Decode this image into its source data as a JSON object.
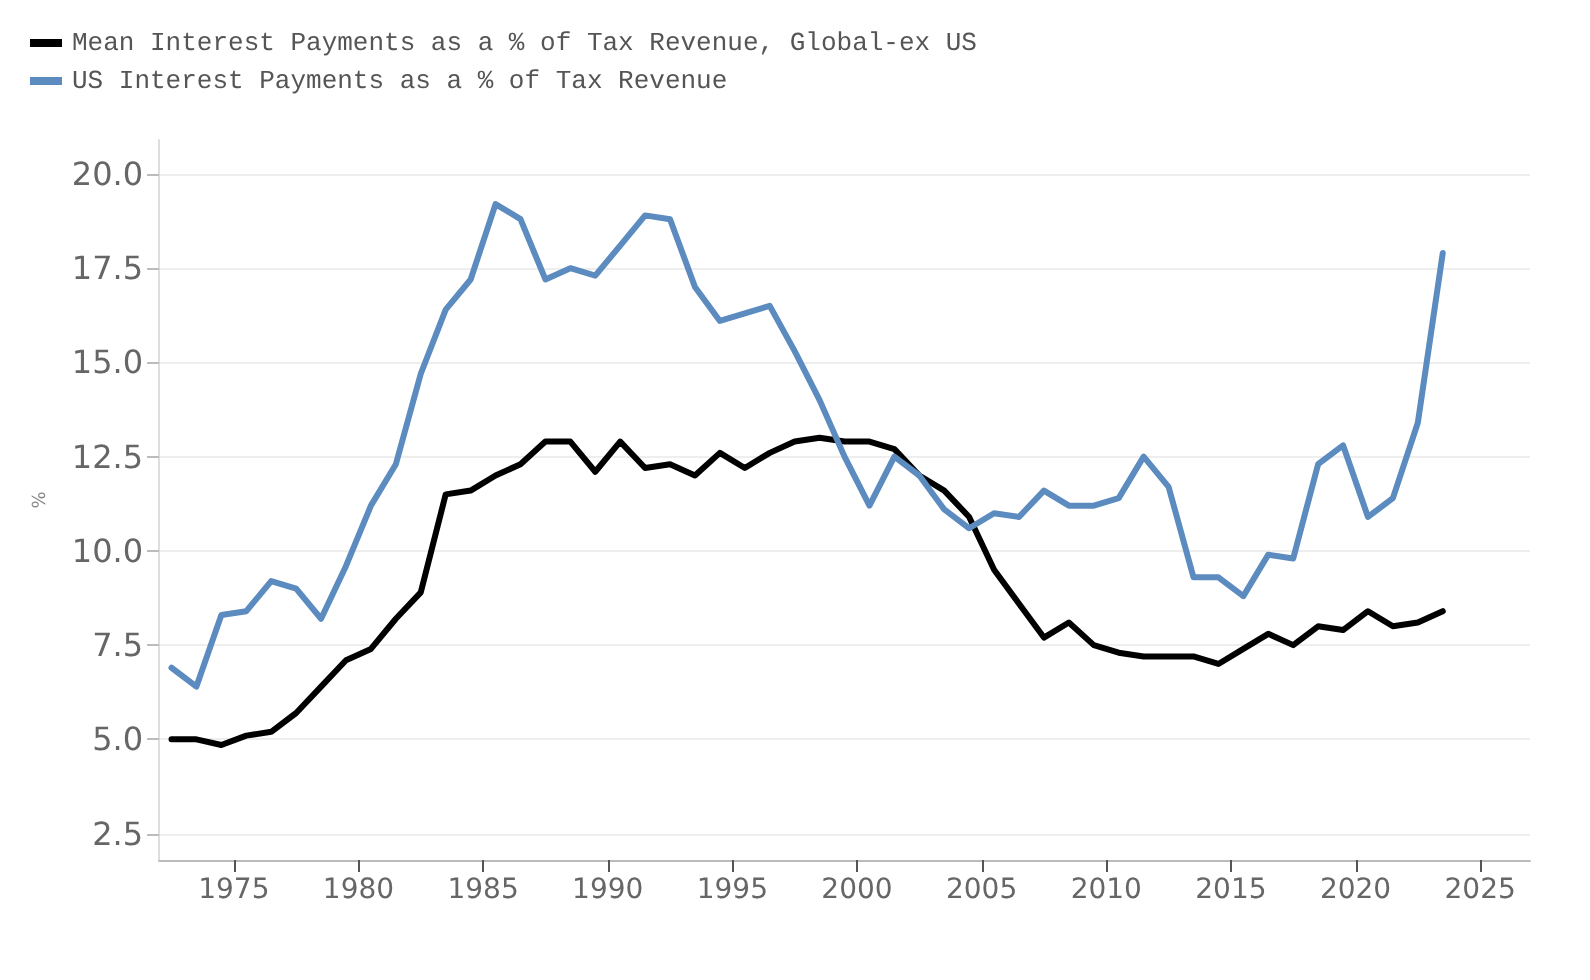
{
  "chart_data": {
    "type": "line",
    "ylabel": "%",
    "legend": "top left",
    "grid": "y",
    "marker": "none",
    "line_style": "solid",
    "xlim": [
      1972,
      2027
    ],
    "xticks": [
      1975,
      1980,
      1985,
      1990,
      1995,
      2000,
      2005,
      2010,
      2015,
      2020,
      2025
    ],
    "ylim": [
      1.8,
      20.9
    ],
    "yticks": [
      {
        "value": 2.5,
        "label": "2.5"
      },
      {
        "value": 5,
        "label": "5.0"
      },
      {
        "value": 7.5,
        "label": "7.5"
      },
      {
        "value": 10,
        "label": "10.0"
      },
      {
        "value": 12.5,
        "label": "12.5"
      },
      {
        "value": 15,
        "label": "15.0"
      },
      {
        "value": 17.5,
        "label": "17.5"
      },
      {
        "value": 20,
        "label": "20.0"
      }
    ],
    "x": [
      1972.5,
      1973.5,
      1974.5,
      1975.5,
      1976.5,
      1977.5,
      1978.5,
      1979.5,
      1980.5,
      1981.5,
      1982.5,
      1983.5,
      1984.5,
      1985.5,
      1986.5,
      1987.5,
      1988.5,
      1989.5,
      1990.5,
      1991.5,
      1992.5,
      1993.5,
      1994.5,
      1995.5,
      1996.5,
      1997.5,
      1998.5,
      1999.5,
      2000.5,
      2001.5,
      2002.5,
      2003.5,
      2004.5,
      2005.5,
      2006.5,
      2007.5,
      2008.5,
      2009.5,
      2010.5,
      2011.5,
      2012.5,
      2013.5,
      2014.5,
      2015.5,
      2016.5,
      2017.5,
      2018.5,
      2019.5,
      2020.5,
      2021.5,
      2022.5,
      2023.5
    ],
    "series": [
      {
        "name": "Mean Interest Payments as a % of Tax Revenue, Global-ex US",
        "color": "#000000",
        "values": [
          5.0,
          5.0,
          4.85,
          5.1,
          5.2,
          5.7,
          6.4,
          7.1,
          7.4,
          8.2,
          8.9,
          11.5,
          11.6,
          12.0,
          12.3,
          12.9,
          12.9,
          12.1,
          12.9,
          12.2,
          12.3,
          12.0,
          12.6,
          12.2,
          12.6,
          12.9,
          13.0,
          12.9,
          12.9,
          12.7,
          12.0,
          11.6,
          10.9,
          9.5,
          8.6,
          7.7,
          8.1,
          7.5,
          7.3,
          7.2,
          7.2,
          7.2,
          7.0,
          7.4,
          7.8,
          7.5,
          8.0,
          7.9,
          8.4,
          8.0,
          8.1,
          8.4
        ]
      },
      {
        "name": "US Interest Payments as a % of Tax Revenue",
        "color": "#5b8bbf",
        "values": [
          6.9,
          6.4,
          8.3,
          8.4,
          9.2,
          9.0,
          8.2,
          9.6,
          11.2,
          12.3,
          14.7,
          16.4,
          17.2,
          19.2,
          18.8,
          17.2,
          17.5,
          17.3,
          18.1,
          18.9,
          18.8,
          17.0,
          16.1,
          16.3,
          16.5,
          15.3,
          14.0,
          12.5,
          11.2,
          12.5,
          12.0,
          11.1,
          10.6,
          11.0,
          10.9,
          11.6,
          11.2,
          11.2,
          11.4,
          12.5,
          11.7,
          9.3,
          9.3,
          8.8,
          9.9,
          9.8,
          12.3,
          12.8,
          10.9,
          11.4,
          13.4,
          17.9
        ]
      }
    ]
  }
}
